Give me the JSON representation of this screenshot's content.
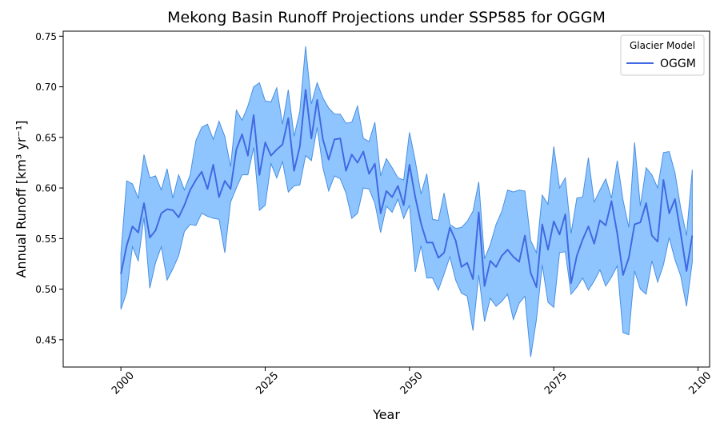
{
  "chart_data": {
    "type": "line",
    "title": "Mekong Basin Runoff Projections under SSP585 for OGGM",
    "xlabel": "Year",
    "ylabel": "Annual Runoff [km³ yr⁻¹]",
    "xlim": [
      1990,
      2102
    ],
    "ylim": [
      0.423,
      0.755
    ],
    "xticks": [
      2000,
      2025,
      2050,
      2075,
      2100
    ],
    "yticks": [
      0.45,
      0.5,
      0.55,
      0.6,
      0.65,
      0.7,
      0.75
    ],
    "ytick_labels": [
      "0.45",
      "0.50",
      "0.55",
      "0.60",
      "0.65",
      "0.70",
      "0.75"
    ],
    "grid": false,
    "legend": {
      "title": "Glacier Model",
      "placement": "top-right"
    },
    "colors": {
      "line": "#4169e1",
      "band_fill": "#8ec5ff",
      "band_edge": "#4a8fe0"
    },
    "series": [
      {
        "name": "OGGM",
        "x": [
          2000,
          2001,
          2002,
          2003,
          2004,
          2005,
          2006,
          2007,
          2008,
          2009,
          2010,
          2011,
          2012,
          2013,
          2014,
          2015,
          2016,
          2017,
          2018,
          2019,
          2020,
          2021,
          2022,
          2023,
          2024,
          2025,
          2026,
          2027,
          2028,
          2029,
          2030,
          2031,
          2032,
          2033,
          2034,
          2035,
          2036,
          2037,
          2038,
          2039,
          2040,
          2041,
          2042,
          2043,
          2044,
          2045,
          2046,
          2047,
          2048,
          2049,
          2050,
          2051,
          2052,
          2053,
          2054,
          2055,
          2056,
          2057,
          2058,
          2059,
          2060,
          2061,
          2062,
          2063,
          2064,
          2065,
          2066,
          2067,
          2068,
          2069,
          2070,
          2071,
          2072,
          2073,
          2074,
          2075,
          2076,
          2077,
          2078,
          2079,
          2080,
          2081,
          2082,
          2083,
          2084,
          2085,
          2086,
          2087,
          2088,
          2089,
          2090,
          2091,
          2092,
          2093,
          2094,
          2095,
          2096,
          2097,
          2098,
          2099
        ],
        "mean": [
          0.515,
          0.543,
          0.562,
          0.556,
          0.585,
          0.551,
          0.558,
          0.575,
          0.579,
          0.578,
          0.571,
          0.583,
          0.598,
          0.608,
          0.616,
          0.599,
          0.623,
          0.591,
          0.607,
          0.599,
          0.638,
          0.653,
          0.632,
          0.672,
          0.613,
          0.645,
          0.632,
          0.638,
          0.643,
          0.669,
          0.617,
          0.641,
          0.697,
          0.649,
          0.687,
          0.648,
          0.628,
          0.648,
          0.649,
          0.617,
          0.633,
          0.625,
          0.636,
          0.614,
          0.624,
          0.575,
          0.597,
          0.591,
          0.602,
          0.583,
          0.623,
          0.591,
          0.565,
          0.546,
          0.546,
          0.531,
          0.536,
          0.561,
          0.548,
          0.522,
          0.526,
          0.51,
          0.576,
          0.503,
          0.528,
          0.522,
          0.533,
          0.539,
          0.532,
          0.527,
          0.553,
          0.516,
          0.502,
          0.564,
          0.539,
          0.567,
          0.554,
          0.574,
          0.506,
          0.533,
          0.549,
          0.562,
          0.545,
          0.568,
          0.563,
          0.587,
          0.555,
          0.514,
          0.531,
          0.564,
          0.566,
          0.585,
          0.553,
          0.547,
          0.608,
          0.575,
          0.589,
          0.555,
          0.518,
          0.553
        ],
        "upper": [
          0.535,
          0.607,
          0.604,
          0.59,
          0.633,
          0.61,
          0.612,
          0.598,
          0.619,
          0.59,
          0.613,
          0.598,
          0.613,
          0.647,
          0.66,
          0.663,
          0.648,
          0.666,
          0.651,
          0.621,
          0.677,
          0.667,
          0.681,
          0.7,
          0.704,
          0.686,
          0.685,
          0.699,
          0.663,
          0.697,
          0.651,
          0.676,
          0.74,
          0.683,
          0.704,
          0.689,
          0.679,
          0.673,
          0.673,
          0.664,
          0.665,
          0.681,
          0.649,
          0.646,
          0.665,
          0.612,
          0.629,
          0.62,
          0.61,
          0.608,
          0.655,
          0.627,
          0.594,
          0.614,
          0.569,
          0.568,
          0.595,
          0.564,
          0.56,
          0.561,
          0.567,
          0.577,
          0.606,
          0.53,
          0.544,
          0.564,
          0.577,
          0.598,
          0.596,
          0.598,
          0.597,
          0.548,
          0.536,
          0.593,
          0.584,
          0.641,
          0.6,
          0.61,
          0.555,
          0.59,
          0.591,
          0.63,
          0.586,
          0.598,
          0.609,
          0.59,
          0.627,
          0.588,
          0.561,
          0.645,
          0.582,
          0.62,
          0.613,
          0.6,
          0.635,
          0.636,
          0.615,
          0.58,
          0.553,
          0.618
        ],
        "lower": [
          0.48,
          0.497,
          0.542,
          0.528,
          0.571,
          0.501,
          0.526,
          0.542,
          0.509,
          0.52,
          0.533,
          0.557,
          0.564,
          0.563,
          0.575,
          0.572,
          0.57,
          0.569,
          0.536,
          0.586,
          0.6,
          0.613,
          0.613,
          0.64,
          0.578,
          0.583,
          0.624,
          0.61,
          0.626,
          0.596,
          0.602,
          0.603,
          0.632,
          0.627,
          0.66,
          0.62,
          0.597,
          0.612,
          0.609,
          0.595,
          0.57,
          0.575,
          0.6,
          0.599,
          0.585,
          0.556,
          0.582,
          0.576,
          0.589,
          0.57,
          0.583,
          0.517,
          0.543,
          0.511,
          0.511,
          0.499,
          0.515,
          0.532,
          0.509,
          0.496,
          0.493,
          0.459,
          0.514,
          0.468,
          0.491,
          0.483,
          0.488,
          0.495,
          0.47,
          0.486,
          0.493,
          0.433,
          0.47,
          0.524,
          0.487,
          0.482,
          0.536,
          0.537,
          0.495,
          0.502,
          0.511,
          0.499,
          0.508,
          0.519,
          0.503,
          0.512,
          0.523,
          0.457,
          0.455,
          0.518,
          0.5,
          0.495,
          0.528,
          0.507,
          0.524,
          0.551,
          0.529,
          0.513,
          0.483,
          0.527
        ]
      }
    ]
  }
}
